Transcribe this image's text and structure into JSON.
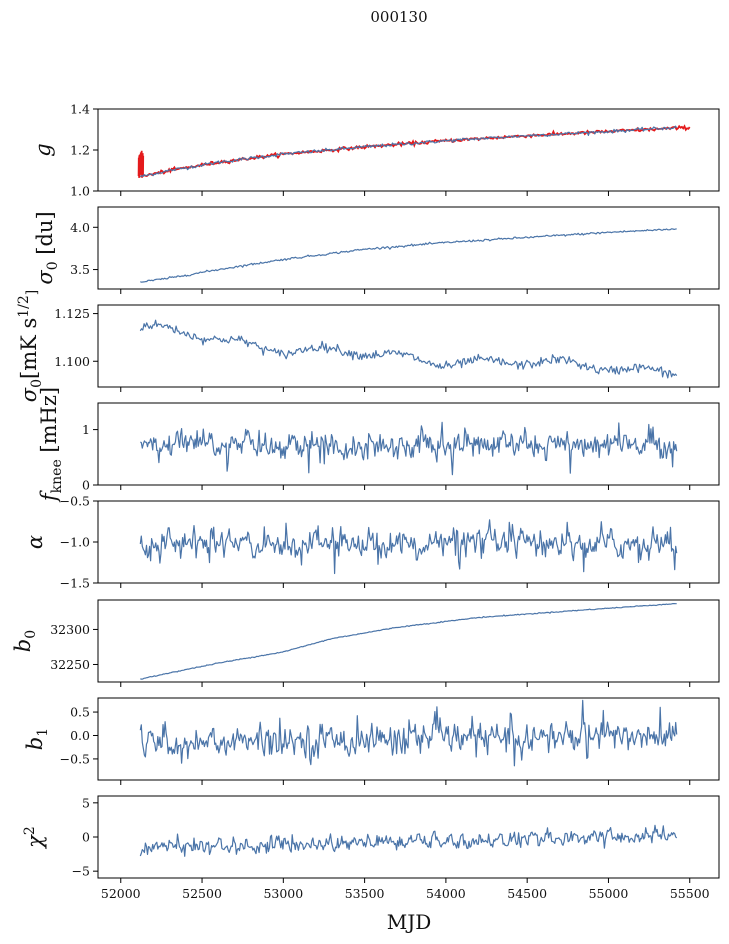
{
  "figure_title": "000130",
  "chart_data": [
    {
      "type": "line",
      "id": "g",
      "ylabel": "g",
      "ylim": [
        1.0,
        1.4
      ],
      "yticks": [
        1.0,
        1.2,
        1.4
      ],
      "ytick_labels": [
        "1.0",
        "1.2",
        "1.4"
      ],
      "shape": "trend",
      "anchors": [
        [
          52120,
          1.07
        ],
        [
          52300,
          1.1
        ],
        [
          52600,
          1.14
        ],
        [
          53000,
          1.18
        ],
        [
          53500,
          1.215
        ],
        [
          54000,
          1.245
        ],
        [
          54500,
          1.27
        ],
        [
          55000,
          1.29
        ],
        [
          55420,
          1.31
        ]
      ],
      "noise": 0.004,
      "overlay": {
        "color": "#e41a1c",
        "anchors": [
          [
            52120,
            1.07
          ],
          [
            52300,
            1.1
          ],
          [
            52600,
            1.14
          ],
          [
            53000,
            1.18
          ],
          [
            53500,
            1.215
          ],
          [
            54000,
            1.245
          ],
          [
            54500,
            1.27
          ],
          [
            55000,
            1.29
          ],
          [
            55500,
            1.31
          ]
        ],
        "noise": 0.004,
        "spike": {
          "x": 52110,
          "ymin": 1.06,
          "ymax": 1.2
        }
      },
      "xtick_labels_visible": false
    },
    {
      "type": "line",
      "id": "sigma0_du",
      "ylabel": "σ0 [du]",
      "ylim": [
        3.27,
        4.24
      ],
      "yticks": [
        3.5,
        4.0
      ],
      "ytick_labels": [
        "3.5",
        "4.0"
      ],
      "shape": "trend",
      "anchors": [
        [
          52120,
          3.35
        ],
        [
          52300,
          3.4
        ],
        [
          52600,
          3.5
        ],
        [
          53000,
          3.62
        ],
        [
          53500,
          3.74
        ],
        [
          54000,
          3.82
        ],
        [
          54500,
          3.88
        ],
        [
          55000,
          3.94
        ],
        [
          55420,
          3.98
        ]
      ],
      "noise": 0.006,
      "xtick_labels_visible": false
    },
    {
      "type": "line",
      "id": "sigma0_mK",
      "ylabel": "σ0[mK s^1/2]",
      "ylim": [
        1.0865,
        1.1295
      ],
      "yticks": [
        1.1,
        1.125
      ],
      "ytick_labels": [
        "1.100",
        "1.125"
      ],
      "shape": "wavy",
      "anchors": [
        [
          52120,
          1.117
        ],
        [
          52500,
          1.114
        ],
        [
          53000,
          1.106
        ],
        [
          53500,
          1.104
        ],
        [
          54000,
          1.1
        ],
        [
          54500,
          1.099
        ],
        [
          55000,
          1.097
        ],
        [
          55420,
          1.095
        ]
      ],
      "noise": 0.0012,
      "wave_amp": 0.0018,
      "xtick_labels_visible": false
    },
    {
      "type": "line",
      "id": "fknee",
      "ylabel": "f_knee [mHz]",
      "ylim": [
        0,
        1.48
      ],
      "yticks": [
        0,
        1
      ],
      "ytick_labels": [
        "0",
        "1"
      ],
      "shape": "noise",
      "mean": 0.72,
      "noise": 0.12,
      "spikes": 0.45,
      "xtick_labels_visible": false
    },
    {
      "type": "line",
      "id": "alpha",
      "ylabel": "α",
      "ylim": [
        -1.5,
        -0.5
      ],
      "yticks": [
        -1.5,
        -1.0,
        -0.5
      ],
      "ytick_labels": [
        "−1.5",
        "−1.0",
        "−0.5"
      ],
      "shape": "noise",
      "mean": -1.02,
      "noise": 0.08,
      "spikes": 0.3,
      "xtick_labels_visible": false
    },
    {
      "type": "line",
      "id": "b0",
      "ylabel": "b0",
      "ylim": [
        32225,
        32342
      ],
      "yticks": [
        32250,
        32300
      ],
      "ytick_labels": [
        "32250",
        "32300"
      ],
      "shape": "trend",
      "anchors": [
        [
          52120,
          32229
        ],
        [
          52300,
          32238
        ],
        [
          52600,
          32252
        ],
        [
          53000,
          32268
        ],
        [
          53300,
          32287
        ],
        [
          53700,
          32303
        ],
        [
          54200,
          32317
        ],
        [
          54800,
          32327
        ],
        [
          55420,
          32337
        ]
      ],
      "noise": 0.35,
      "xtick_labels_visible": false
    },
    {
      "type": "line",
      "id": "b1",
      "ylabel": "b1",
      "ylim": [
        -0.95,
        0.8
      ],
      "yticks": [
        -0.5,
        0.0,
        0.5
      ],
      "ytick_labels": [
        "−0.5",
        "0.0",
        "0.5"
      ],
      "shape": "noise",
      "mean": -0.15,
      "trend_end": 0.0,
      "noise": 0.16,
      "spikes": 0.45,
      "xtick_labels_visible": false
    },
    {
      "type": "line",
      "id": "chi2",
      "ylabel": "χ2",
      "xlabel": "MJD",
      "ylim": [
        -6,
        6
      ],
      "yticks": [
        -5,
        0,
        5
      ],
      "ytick_labels": [
        "−5",
        "0",
        "5"
      ],
      "shape": "noise",
      "mean": -1.6,
      "trend_end": 0.2,
      "noise": 0.55,
      "spikes": 1.2,
      "xtick_labels_visible": true
    }
  ],
  "xaxis": {
    "label": "MJD",
    "xlim": [
      51860,
      55680
    ],
    "ticks": [
      52000,
      52500,
      53000,
      53500,
      54000,
      54500,
      55000,
      55500
    ],
    "tick_labels": [
      "52000",
      "52500",
      "53000",
      "53500",
      "54000",
      "54500",
      "55000",
      "55500"
    ],
    "data_start": 52120,
    "data_end": 55420
  }
}
